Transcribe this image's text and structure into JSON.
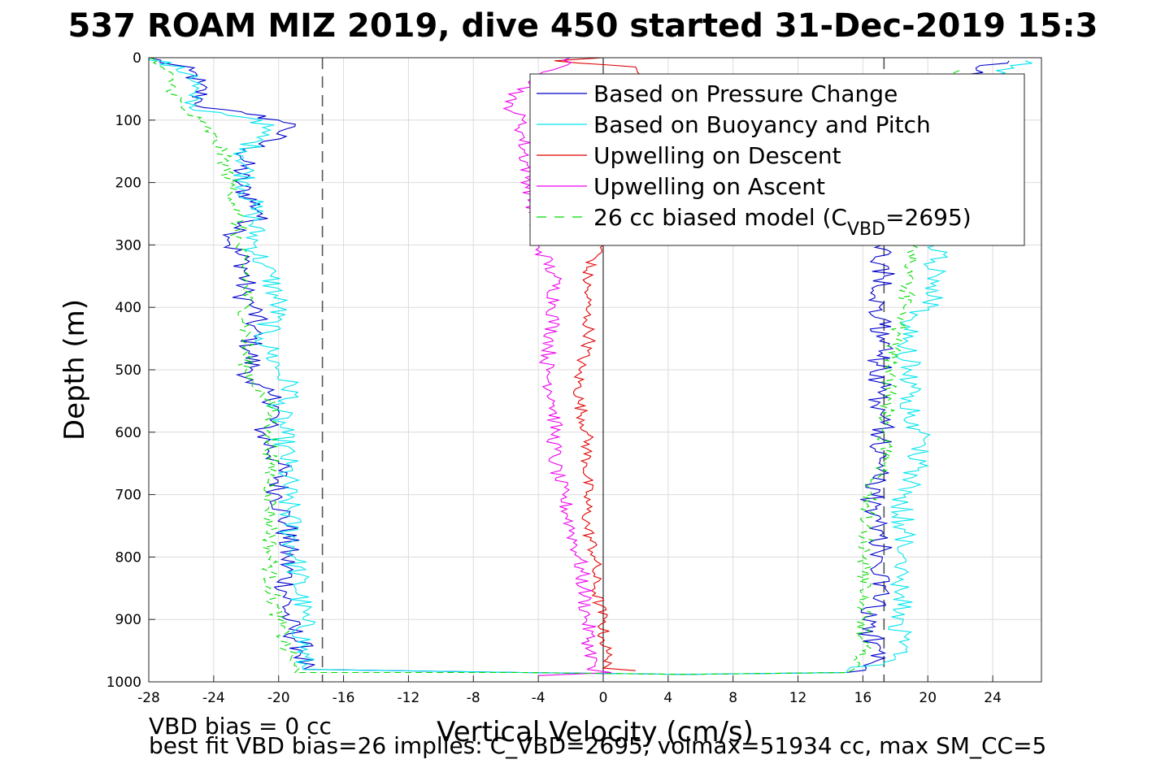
{
  "chart_data": {
    "type": "line",
    "title": "537 ROAM MIZ 2019, dive 450 started 31-Dec-2019 15:3",
    "xlabel": "Vertical Velocity (cm/s)",
    "ylabel": "Depth (m)",
    "xlim": [
      -28,
      27
    ],
    "ylim": [
      0,
      1000
    ],
    "y_reversed": true,
    "grid": true,
    "x_ticks": [
      "-28",
      "-24",
      "-20",
      "-16",
      "-12",
      "-8",
      "-4",
      "0",
      "4",
      "8",
      "12",
      "16",
      "20",
      "24"
    ],
    "y_ticks": [
      "0",
      "100",
      "200",
      "300",
      "400",
      "500",
      "600",
      "700",
      "800",
      "900",
      "1000"
    ],
    "reference_lines": [
      {
        "type": "vertical",
        "x": 0,
        "style": "solid"
      },
      {
        "type": "vertical",
        "x": -17.3,
        "style": "dashed"
      },
      {
        "type": "vertical",
        "x": 17.3,
        "style": "dashed"
      }
    ],
    "legend": {
      "placement": "top-right",
      "entries": [
        {
          "label": "Based on Pressure Change",
          "color": "#0000cc",
          "dash": "solid"
        },
        {
          "label": "Based on Buoyancy and Pitch",
          "color": "#00e5ee",
          "dash": "solid"
        },
        {
          "label": "Upwelling on Descent",
          "color": "#e00000",
          "dash": "solid"
        },
        {
          "label": "Upwelling on Ascent",
          "color": "#ee00ee",
          "dash": "solid"
        },
        {
          "label": "26 cc biased model (C",
          "sub": "VBD",
          "suffix": "=2695)",
          "color": "#00dd00",
          "dash": "dashed"
        }
      ]
    },
    "series": [
      {
        "name": "Based on Pressure Change",
        "color": "#0000cc",
        "dash": "solid",
        "noise": 0.8,
        "x": [
          -28,
          -25.5,
          -25,
          -24.8,
          -24.6,
          -22,
          -20,
          -19,
          -22,
          -22.5,
          -21,
          -22.5,
          -23,
          -22,
          -22.2,
          -21.5,
          -21.5,
          -21.8,
          -21.6,
          -22,
          -20.5,
          -20,
          -21,
          -20,
          -20,
          -19.5,
          -19.5,
          -19.5,
          -18.5,
          -18.5,
          -5,
          5,
          15,
          16.5,
          17,
          16,
          17,
          17.2,
          17,
          16.5,
          17,
          17.3,
          16.5,
          17.2,
          17,
          17,
          17.3,
          17,
          17.3,
          17.2,
          17,
          21,
          22,
          22.5,
          22,
          23,
          25
        ],
        "y": [
          0,
          20,
          40,
          70,
          80,
          90,
          100,
          110,
          150,
          200,
          250,
          280,
          300,
          330,
          380,
          400,
          430,
          470,
          500,
          520,
          540,
          560,
          600,
          650,
          700,
          750,
          800,
          900,
          950,
          980,
          985,
          988,
          985,
          970,
          950,
          900,
          870,
          800,
          750,
          700,
          650,
          600,
          560,
          540,
          500,
          470,
          450,
          400,
          350,
          300,
          250,
          200,
          150,
          100,
          50,
          20,
          5
        ]
      },
      {
        "name": "Based on Buoyancy and Pitch",
        "color": "#00e5ee",
        "dash": "solid",
        "noise": 0.8,
        "x": [
          -28,
          -25,
          -25.5,
          -25.5,
          -21,
          -21,
          -22,
          -22,
          -21.5,
          -21.5,
          -21,
          -20.5,
          -20,
          -21,
          -20.5,
          -20,
          -19,
          -20,
          -19.8,
          -19.5,
          -19.5,
          -19,
          -18.5,
          -18.5,
          -5,
          5,
          15,
          18,
          18.5,
          18.5,
          18.5,
          19,
          19.5,
          19.5,
          19,
          19,
          18.5,
          19,
          20,
          20.5,
          20.5,
          21.5,
          22.5,
          23,
          23.5,
          26
        ],
        "y": [
          0,
          30,
          60,
          80,
          100,
          120,
          150,
          200,
          250,
          300,
          330,
          350,
          400,
          450,
          470,
          500,
          540,
          550,
          600,
          650,
          700,
          800,
          900,
          980,
          985,
          988,
          985,
          960,
          900,
          800,
          700,
          680,
          650,
          600,
          550,
          500,
          450,
          420,
          400,
          350,
          300,
          250,
          200,
          100,
          40,
          5
        ]
      },
      {
        "name": "Upwelling on Descent",
        "color": "#e00000",
        "dash": "solid",
        "noise": 0.4,
        "x": [
          0,
          -3,
          2,
          0,
          -1,
          -1,
          -1,
          -1,
          -0.8,
          -1.5,
          -1.5,
          -1,
          -1,
          -1,
          -1,
          -0.5,
          -0.5,
          0,
          0,
          0.2,
          0.3,
          0.5,
          0,
          2
        ],
        "y": [
          0,
          5,
          15,
          300,
          340,
          380,
          400,
          420,
          450,
          500,
          550,
          600,
          650,
          700,
          750,
          800,
          850,
          900,
          930,
          950,
          960,
          970,
          978,
          982
        ]
      },
      {
        "name": "Upwelling on Ascent",
        "color": "#ee00ee",
        "dash": "solid",
        "noise": 0.5,
        "x": [
          -2,
          -6,
          -5,
          -5,
          -4,
          -3,
          -3,
          -3.2,
          -3.5,
          -3,
          -3,
          -3,
          -2.5,
          -2,
          -1.5,
          -1.2,
          -1,
          -0.8,
          -0.5,
          -0.5,
          -1,
          0.5,
          -4
        ],
        "y": [
          0,
          70,
          100,
          120,
          300,
          350,
          400,
          450,
          500,
          550,
          600,
          650,
          700,
          750,
          800,
          850,
          900,
          950,
          970,
          975,
          980,
          985,
          990
        ]
      },
      {
        "name": "26 cc biased model (C_VBD=2695)",
        "color": "#00dd00",
        "dash": "dashed",
        "noise": 0.5,
        "x": [
          -28,
          -27,
          -26.5,
          -26,
          -25,
          -24.5,
          -23.5,
          -23,
          -22.5,
          -22.5,
          -22,
          -22,
          -22,
          -21,
          -20.5,
          -20.5,
          -20.5,
          -20.5,
          -20.5,
          -20.5,
          -20.5,
          -20,
          -19.5,
          -19,
          -19,
          -5,
          5,
          15,
          15.8,
          16,
          16,
          16.2,
          16,
          16.3,
          16.5,
          16.5,
          17.3,
          17.3,
          17.5,
          17.8,
          18,
          18.5,
          18.5,
          19,
          19,
          19.2,
          20,
          22
        ],
        "y": [
          0,
          20,
          50,
          80,
          100,
          110,
          150,
          200,
          250,
          300,
          350,
          400,
          500,
          540,
          560,
          600,
          650,
          700,
          750,
          800,
          850,
          900,
          950,
          970,
          985,
          985,
          988,
          985,
          970,
          950,
          900,
          850,
          800,
          750,
          700,
          680,
          650,
          600,
          550,
          500,
          450,
          420,
          400,
          350,
          300,
          250,
          150,
          20
        ]
      }
    ]
  },
  "footer": {
    "line1": "VBD bias = 0 cc",
    "line2": "best fit VBD bias=26 implies: C_VBD=2695, volmax=51934 cc, max SM_CC=5"
  }
}
